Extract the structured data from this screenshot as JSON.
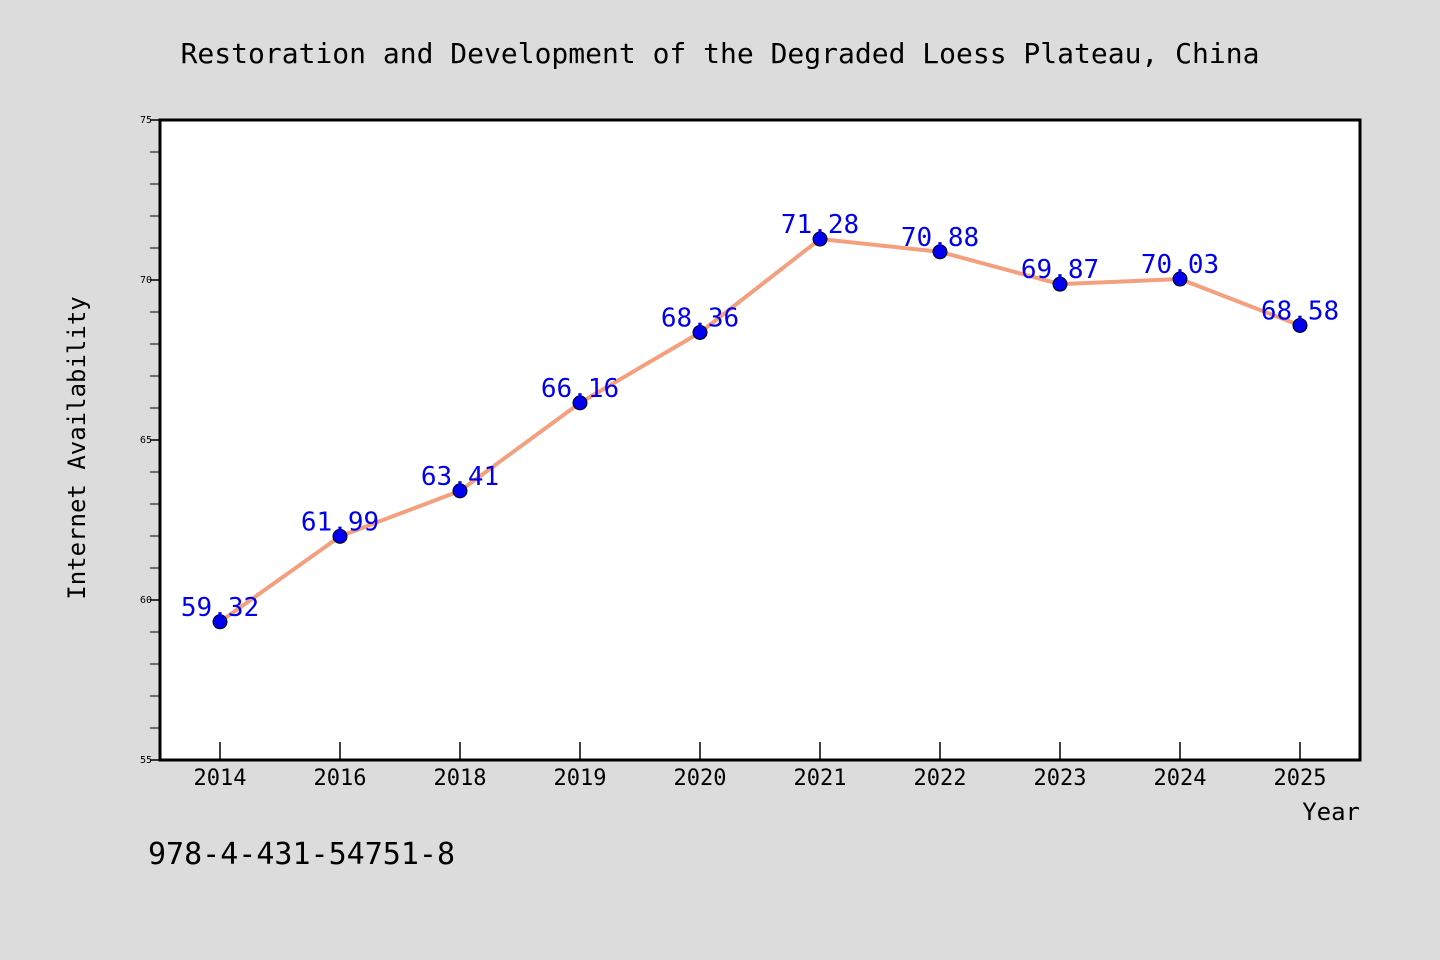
{
  "chart_data": {
    "type": "line",
    "title": "Restoration and Development of the Degraded Loess Plateau, China",
    "xlabel": "Year",
    "ylabel": "Internet Availability",
    "categories": [
      "2014",
      "2016",
      "2018",
      "2019",
      "2020",
      "2021",
      "2022",
      "2023",
      "2024",
      "2025"
    ],
    "series": [
      {
        "values": [
          59.32,
          61.99,
          63.41,
          66.16,
          68.36,
          71.28,
          70.88,
          69.87,
          70.03,
          68.58
        ],
        "data_labels": [
          "59.32",
          "61.99",
          "63.41",
          "66.16",
          "68.36",
          "71.28",
          "70.88",
          "69.87",
          "70.03",
          "68.58"
        ]
      }
    ],
    "ylim": [
      55,
      75
    ],
    "yticks": [
      "55",
      "60",
      "65",
      "70",
      "75"
    ],
    "grid": false,
    "legend": "none",
    "colors": {
      "line": "#f4a07e",
      "marker": "#0000ee",
      "label": "#0000ee",
      "background": "#dcdcdc",
      "plot_area": "#ffffff"
    }
  },
  "footer": {
    "isbn": "978-4-431-54751-8"
  }
}
